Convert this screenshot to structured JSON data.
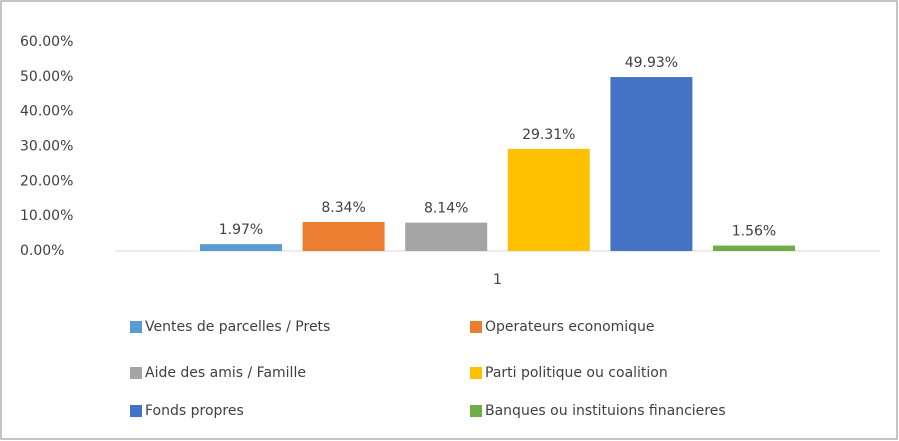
{
  "chart_data": {
    "type": "bar",
    "categories": [
      "1"
    ],
    "series": [
      {
        "name": "Ventes de parcelles / Prets",
        "color": "#5b9bd5",
        "values": [
          1.97
        ],
        "value_labels": [
          "1.97%"
        ]
      },
      {
        "name": "Operateurs economique",
        "color": "#ed7d31",
        "values": [
          8.34
        ],
        "value_labels": [
          "8.34%"
        ]
      },
      {
        "name": "Aide des amis / Famille",
        "color": "#a5a5a5",
        "values": [
          8.14
        ],
        "value_labels": [
          "8.14%"
        ]
      },
      {
        "name": "Parti politique ou coalition",
        "color": "#ffc000",
        "values": [
          29.31
        ],
        "value_labels": [
          "29.31%"
        ]
      },
      {
        "name": "Fonds propres",
        "color": "#4472c4",
        "values": [
          49.93
        ],
        "value_labels": [
          "49.93%"
        ]
      },
      {
        "name": "Banques ou instituions financieres",
        "color": "#70ad47",
        "values": [
          1.56
        ],
        "value_labels": [
          "1.56%"
        ]
      }
    ],
    "ylim": [
      0,
      60
    ],
    "yticks": [
      {
        "value": 0,
        "label": "0.00%"
      },
      {
        "value": 10,
        "label": "10.00%"
      },
      {
        "value": 20,
        "label": "20.00%"
      },
      {
        "value": 30,
        "label": "30.00%"
      },
      {
        "value": 40,
        "label": "40.00%"
      },
      {
        "value": 50,
        "label": "50.00%"
      },
      {
        "value": 60,
        "label": "60.00%"
      }
    ],
    "grid": false,
    "legend": "bottom"
  }
}
